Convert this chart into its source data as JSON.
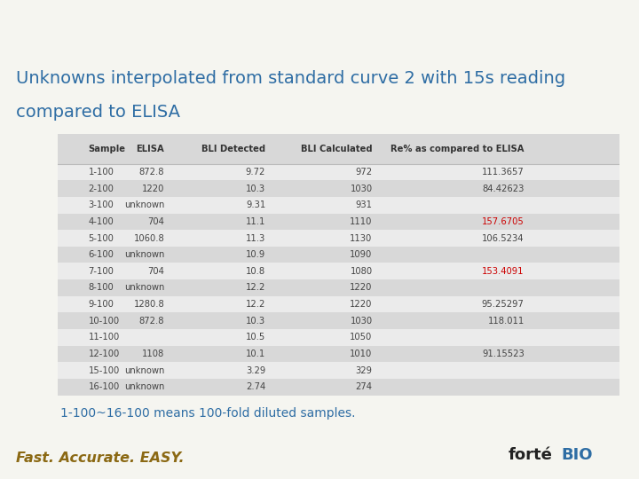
{
  "title_line1": "Unknowns interpolated from standard curve 2 with 15s reading",
  "title_line2": "compared to ELISA",
  "title_color": "#2E6DA4",
  "title_bg": "#F0C040",
  "bg_color": "#F5F5F0",
  "bottom_bar_color": "#F0C040",
  "table_bg_header": "#D8D8D8",
  "table_row_light": "#EBEBEB",
  "table_row_dark": "#D8D8D8",
  "columns": [
    "Sample",
    "ELISA",
    "BLI Detected",
    "BLI Calculated",
    "Re% as compared to ELISA"
  ],
  "rows": [
    [
      "1-100",
      "872.8",
      "9.72",
      "972",
      "111.3657"
    ],
    [
      "2-100",
      "1220",
      "10.3",
      "1030",
      "84.42623"
    ],
    [
      "3-100",
      "unknown",
      "9.31",
      "931",
      ""
    ],
    [
      "4-100",
      "704",
      "11.1",
      "1110",
      "157.6705"
    ],
    [
      "5-100",
      "1060.8",
      "11.3",
      "1130",
      "106.5234"
    ],
    [
      "6-100",
      "unknown",
      "10.9",
      "1090",
      ""
    ],
    [
      "7-100",
      "704",
      "10.8",
      "1080",
      "153.4091"
    ],
    [
      "8-100",
      "unknown",
      "12.2",
      "1220",
      ""
    ],
    [
      "9-100",
      "1280.8",
      "12.2",
      "1220",
      "95.25297"
    ],
    [
      "10-100",
      "872.8",
      "10.3",
      "1030",
      "118.011"
    ],
    [
      "11-100",
      "",
      "10.5",
      "1050",
      ""
    ],
    [
      "12-100",
      "1108",
      "10.1",
      "1010",
      "91.15523"
    ],
    [
      "15-100",
      "unknown",
      "3.29",
      "329",
      ""
    ],
    [
      "16-100",
      "unknown",
      "2.74",
      "274",
      ""
    ]
  ],
  "red_cells": [
    "157.6705",
    "153.4091"
  ],
  "footnote": "1-100~16-100 means 100-fold diluted samples.",
  "footnote_color": "#2E6DA4",
  "footer_text": "Fast. Accurate. EASY.",
  "footer_text_color": "#8B6914"
}
